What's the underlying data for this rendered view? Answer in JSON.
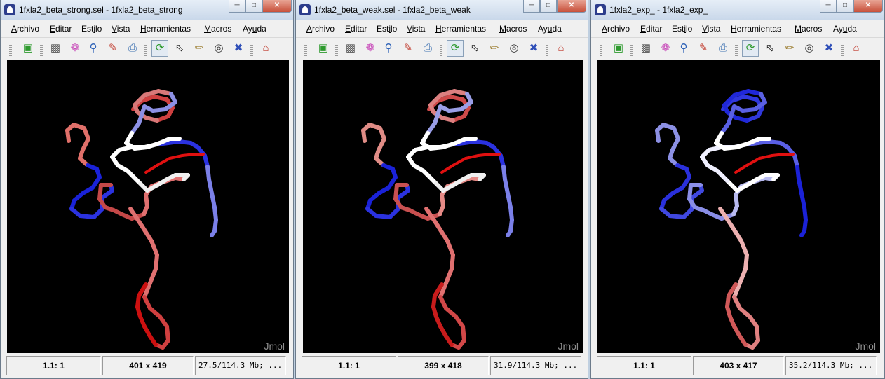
{
  "menu": [
    {
      "pre": "",
      "mn": "A",
      "post": "rchivo"
    },
    {
      "pre": "",
      "mn": "E",
      "post": "ditar"
    },
    {
      "pre": "Est",
      "mn": "i",
      "post": "lo"
    },
    {
      "pre": "",
      "mn": "V",
      "post": "ista"
    },
    {
      "pre": "",
      "mn": "H",
      "post": "erramientas"
    },
    {
      "pre": "",
      "mn": "M",
      "post": "acros"
    },
    {
      "pre": "Ay",
      "mn": "u",
      "post": "da"
    }
  ],
  "toolbar_icons": [
    "open-icon",
    "camera-icon",
    "color-wheel-icon",
    "pin-icon",
    "edit-icon",
    "print-icon",
    "rotate-icon",
    "select-icon",
    "ruler-icon",
    "zoom-icon",
    "measure-icon",
    "home-icon"
  ],
  "window_controls": {
    "minimize": "─",
    "maximize": "□",
    "close": "✕"
  },
  "windows": [
    {
      "title": "1fxla2_beta_strong.sel - 1fxla2_beta_strong",
      "watermark": "Jmol",
      "status": {
        "zoom": "1.1: 1",
        "size": "401 x 419",
        "memory": "27.5/114.3 Mb; ..."
      }
    },
    {
      "title": "1fxla2_beta_weak.sel - 1fxla2_beta_weak",
      "watermark": "Jmol",
      "status": {
        "zoom": "1.1: 1",
        "size": "399 x 418",
        "memory": "31.9/114.3 Mb; ..."
      }
    },
    {
      "title": "1fxla2_exp_ - 1fxla2_exp_",
      "watermark": "Jmol",
      "status": {
        "zoom": "1.1: 1",
        "size": "403 x 417",
        "memory": "35.2/114.3 Mb; ..."
      }
    }
  ]
}
